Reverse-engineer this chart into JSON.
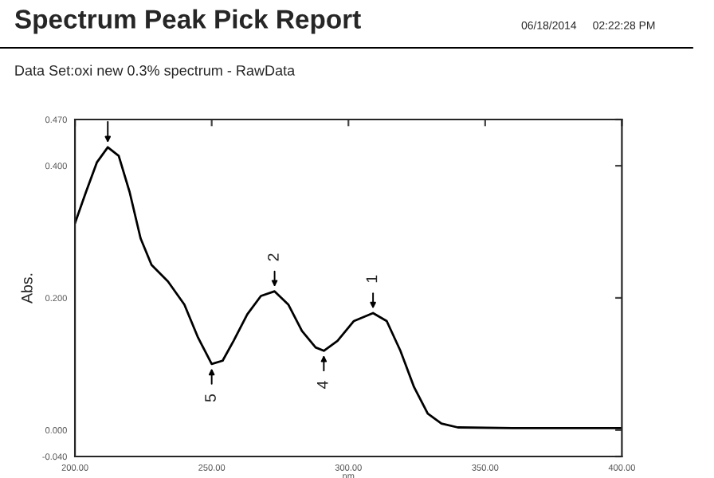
{
  "chart_data": {
    "type": "line",
    "title": "Spectrum Peak Pick Report",
    "subtitle": "Data Set:oxi new 0.3% spectrum - RawData",
    "xlabel": "nm",
    "ylabel": "Abs.",
    "annotations": [
      "06/18/2014",
      "02:22:28 PM",
      {
        "text": "2",
        "x": 273,
        "y": 0.21
      },
      {
        "text": "1",
        "x": 309,
        "y": 0.177
      },
      {
        "text": "5",
        "x": 250,
        "y": 0.1
      },
      {
        "text": "4",
        "x": 291,
        "y": 0.12
      }
    ],
    "series": [
      {
        "color": "#000000",
        "x": [
          200,
          204,
          208,
          212,
          216,
          220,
          224,
          228,
          234,
          240,
          245,
          250,
          254,
          258,
          263,
          268,
          273,
          278,
          283,
          288,
          291,
          296,
          302,
          309,
          314,
          319,
          324,
          329,
          334,
          340,
          360,
          400
        ],
        "values": [
          0.313,
          0.36,
          0.405,
          0.428,
          0.415,
          0.36,
          0.29,
          0.25,
          0.225,
          0.19,
          0.14,
          0.1,
          0.105,
          0.135,
          0.175,
          0.203,
          0.21,
          0.19,
          0.15,
          0.125,
          0.12,
          0.135,
          0.165,
          0.177,
          0.165,
          0.12,
          0.065,
          0.025,
          0.01,
          0.004,
          0.003,
          0.003
        ]
      }
    ],
    "xlim": [
      200,
      400
    ],
    "xticks": [
      {
        "value": 200,
        "label": "200.00"
      },
      {
        "value": 250,
        "label": "250.00"
      },
      {
        "value": 300,
        "label": "300.00"
      },
      {
        "value": 350,
        "label": "350.00"
      },
      {
        "value": 400,
        "label": "400.00"
      }
    ],
    "ylim": [
      -0.04,
      0.47
    ],
    "yticks": [
      {
        "value": -0.04,
        "label": "-0.040"
      },
      {
        "value": 0,
        "label": "0.000"
      },
      {
        "value": 0.2,
        "label": "0.200"
      },
      {
        "value": 0.4,
        "label": "0.400"
      },
      {
        "value": 0.47,
        "label": "0.470"
      }
    ],
    "grid": false,
    "legend": false,
    "marker": "none",
    "line_style": "solid"
  }
}
